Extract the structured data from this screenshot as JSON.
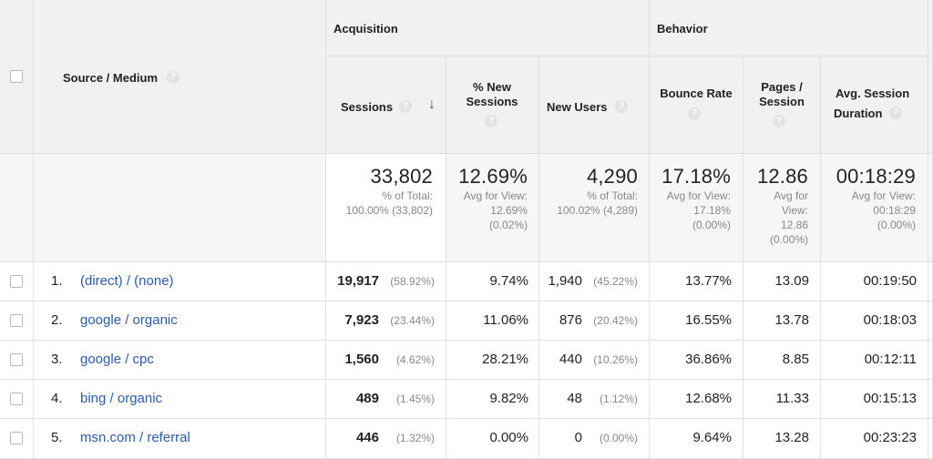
{
  "header": {
    "acquisition": "Acquisition",
    "behavior": "Behavior",
    "source_medium": "Source / Medium",
    "sessions": "Sessions",
    "pct_new_sessions_1": "% New",
    "pct_new_sessions_2": "Sessions",
    "new_users": "New Users",
    "bounce_rate": "Bounce Rate",
    "pages_session_1": "Pages /",
    "pages_session_2": "Session",
    "avg_duration_1": "Avg. Session",
    "avg_duration_2": "Duration",
    "help_glyph": "?",
    "sort_glyph": "↓"
  },
  "totals": {
    "sessions": "33,802",
    "sessions_sub1": "% of Total:",
    "sessions_sub2": "100.00% (33,802)",
    "pct_new": "12.69%",
    "pct_new_sub1": "Avg for View:",
    "pct_new_sub2": "12.69%",
    "pct_new_sub3": "(0.02%)",
    "new_users": "4,290",
    "new_users_sub1": "% of Total:",
    "new_users_sub2": "100.02% (4,289)",
    "bounce": "17.18%",
    "bounce_sub1": "Avg for View:",
    "bounce_sub2": "17.18%",
    "bounce_sub3": "(0.00%)",
    "pages": "12.86",
    "pages_sub1": "Avg for",
    "pages_sub2": "View:",
    "pages_sub3": "12.86",
    "pages_sub4": "(0.00%)",
    "duration": "00:18:29",
    "duration_sub1": "Avg for View:",
    "duration_sub2": "00:18:29",
    "duration_sub3": "(0.00%)"
  },
  "rows": [
    {
      "num": "1.",
      "source": "(direct) / (none)",
      "sessions": "19,917",
      "sessions_pct": "(58.92%)",
      "pct_new": "9.74%",
      "new_users": "1,940",
      "new_users_pct": "(45.22%)",
      "bounce": "13.77%",
      "pages": "13.09",
      "duration": "00:19:50"
    },
    {
      "num": "2.",
      "source": "google / organic",
      "sessions": "7,923",
      "sessions_pct": "(23.44%)",
      "pct_new": "11.06%",
      "new_users": "876",
      "new_users_pct": "(20.42%)",
      "bounce": "16.55%",
      "pages": "13.78",
      "duration": "00:18:03"
    },
    {
      "num": "3.",
      "source": "google / cpc",
      "sessions": "1,560",
      "sessions_pct": "(4.62%)",
      "pct_new": "28.21%",
      "new_users": "440",
      "new_users_pct": "(10.26%)",
      "bounce": "36.86%",
      "pages": "8.85",
      "duration": "00:12:11"
    },
    {
      "num": "4.",
      "source": "bing / organic",
      "sessions": "489",
      "sessions_pct": "(1.45%)",
      "pct_new": "9.82%",
      "new_users": "48",
      "new_users_pct": "(1.12%)",
      "bounce": "12.68%",
      "pages": "11.33",
      "duration": "00:15:13"
    },
    {
      "num": "5.",
      "source": "msn.com / referral",
      "sessions": "446",
      "sessions_pct": "(1.32%)",
      "pct_new": "0.00%",
      "new_users": "0",
      "new_users_pct": "(0.00%)",
      "bounce": "9.64%",
      "pages": "13.28",
      "duration": "00:23:23"
    }
  ]
}
